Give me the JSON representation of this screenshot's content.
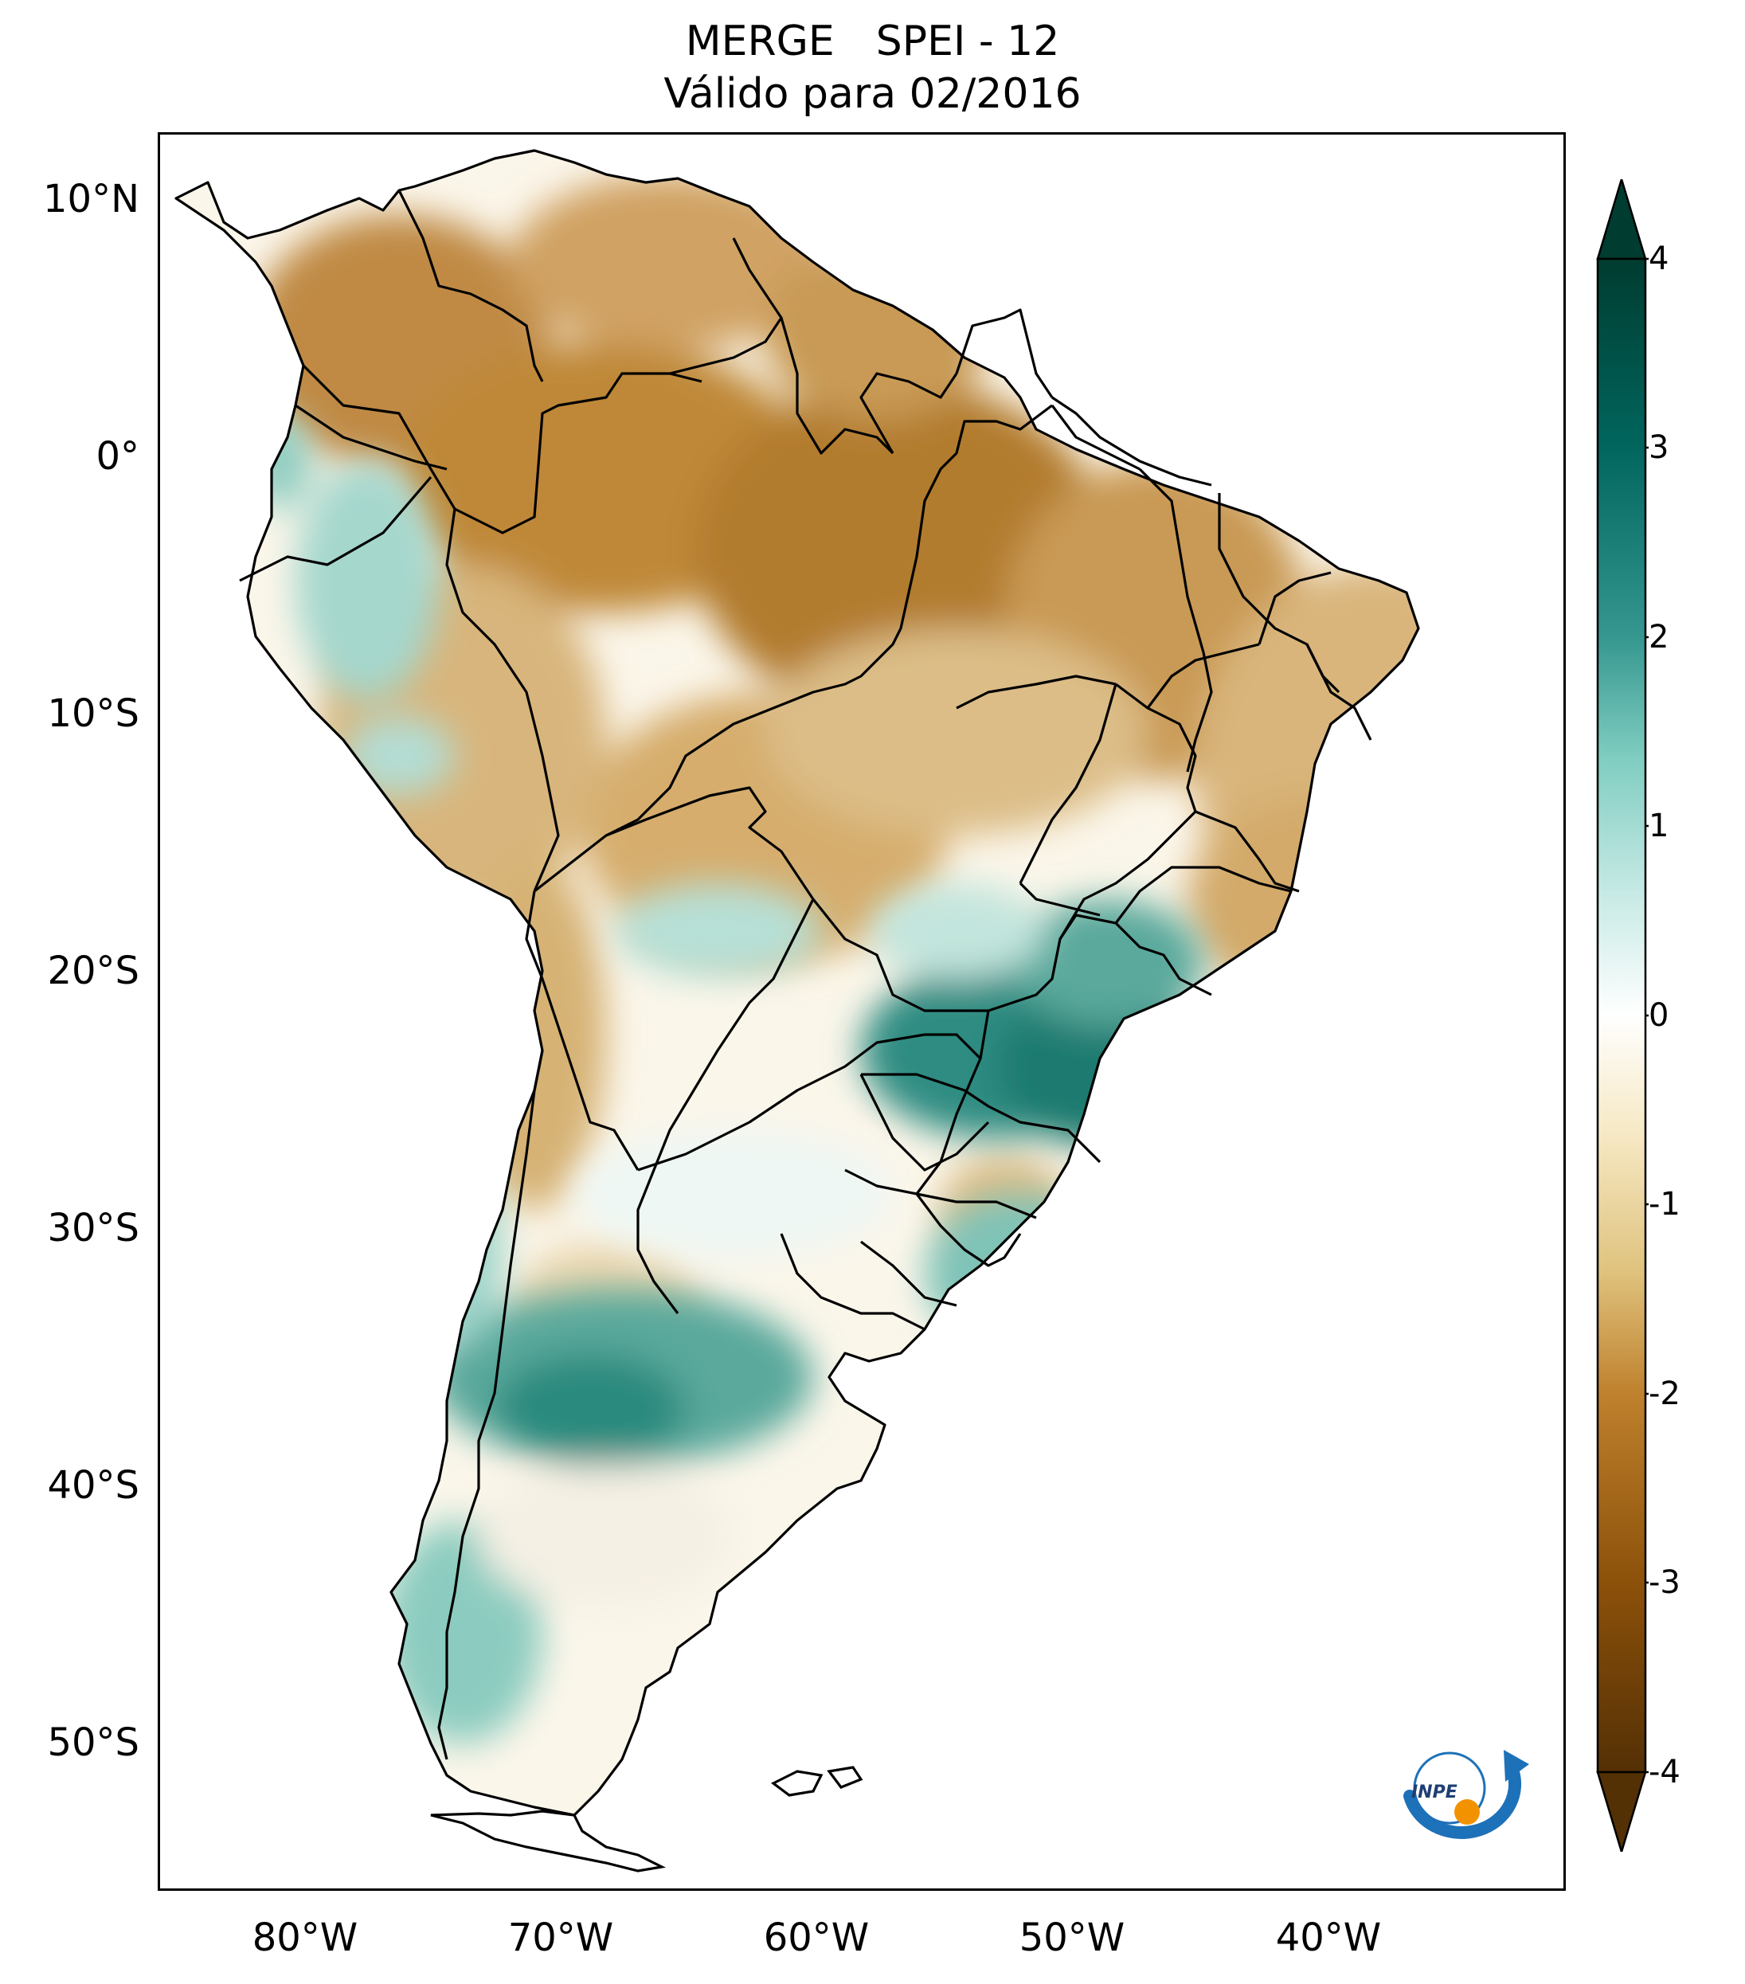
{
  "title": {
    "product": "MERGE",
    "index": "SPEI - 12",
    "subtitle": "Válido para 02/2016"
  },
  "map": {
    "region": "South America",
    "lat_ticks": [
      "10°N",
      "0°",
      "10°S",
      "20°S",
      "30°S",
      "40°S",
      "50°S"
    ],
    "lon_ticks": [
      "80°W",
      "70°W",
      "60°W",
      "50°W",
      "40°W"
    ],
    "lat_range": [
      -56,
      12
    ],
    "lon_range": [
      -85,
      -30
    ],
    "colormap": "BrBG",
    "dry_color": "#8c510a",
    "wet_color": "#01665e",
    "border_color": "#000000"
  },
  "colorbar": {
    "ticks": [
      "4",
      "3",
      "2",
      "1",
      "0",
      "-1",
      "-2",
      "-3",
      "-4"
    ],
    "min": -4,
    "max": 4,
    "extend": "both",
    "colors": [
      "#543005",
      "#8c510a",
      "#bf812d",
      "#dfc27d",
      "#f6e8c3",
      "#ffffff",
      "#c7eae5",
      "#80cdc1",
      "#35978f",
      "#01665e",
      "#003c30"
    ]
  },
  "logo": {
    "text": "INPE",
    "ring_color": "#1d71b8",
    "dot_color": "#f39200"
  }
}
